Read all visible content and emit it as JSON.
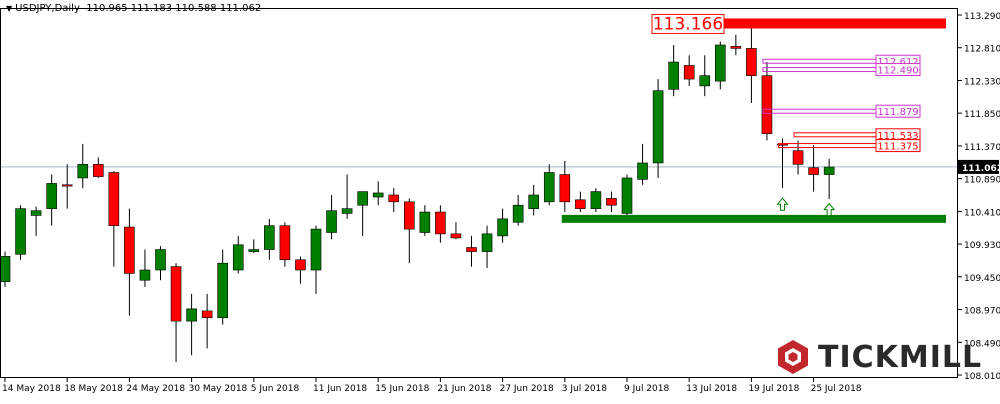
{
  "header": {
    "symbol_timeframe": "USDJPY,Daily",
    "ohlc": "110.965 111.183 110.588 111.062"
  },
  "brand": {
    "name": "TICKMILL",
    "icon": "tickmill-hex-logo-icon",
    "color": "#c0282d"
  },
  "colors": {
    "bull": "#008000",
    "bear": "#ff0000",
    "resistance": "#ff0000",
    "support": "#008000",
    "level_label": "#cc33cc",
    "axis": "#000000"
  },
  "chart_data": {
    "type": "candlestick",
    "symbol": "USDJPY",
    "timeframe": "Daily",
    "ylim": [
      108.01,
      113.29
    ],
    "price_ticks": [
      "113.290",
      "112.810",
      "112.330",
      "111.850",
      "111.370",
      "110.890",
      "110.410",
      "109.930",
      "109.450",
      "108.970",
      "108.490",
      "108.010"
    ],
    "date_ticks": [
      {
        "label": "14 May 2018",
        "index": 0
      },
      {
        "label": "18 May 2018",
        "index": 4
      },
      {
        "label": "24 May 2018",
        "index": 8
      },
      {
        "label": "30 May 2018",
        "index": 12
      },
      {
        "label": "5 Jun 2018",
        "index": 16
      },
      {
        "label": "11 Jun 2018",
        "index": 20
      },
      {
        "label": "15 Jun 2018",
        "index": 24
      },
      {
        "label": "21 Jun 2018",
        "index": 28
      },
      {
        "label": "27 Jun 2018",
        "index": 32
      },
      {
        "label": "3 Jul 2018",
        "index": 36
      },
      {
        "label": "9 Jul 2018",
        "index": 40
      },
      {
        "label": "13 Jul 2018",
        "index": 44
      },
      {
        "label": "19 Jul 2018",
        "index": 48
      },
      {
        "label": "25 Jul 2018",
        "index": 52
      }
    ],
    "candles": [
      {
        "o": 109.38,
        "h": 109.82,
        "l": 109.3,
        "c": 109.75
      },
      {
        "o": 109.78,
        "h": 110.5,
        "l": 109.7,
        "c": 110.45
      },
      {
        "o": 110.35,
        "h": 110.48,
        "l": 110.05,
        "c": 110.42
      },
      {
        "o": 110.45,
        "h": 110.95,
        "l": 110.2,
        "c": 110.82
      },
      {
        "o": 110.8,
        "h": 111.1,
        "l": 110.45,
        "c": 110.78
      },
      {
        "o": 110.9,
        "h": 111.4,
        "l": 110.75,
        "c": 111.1
      },
      {
        "o": 111.1,
        "h": 111.2,
        "l": 110.9,
        "c": 110.92
      },
      {
        "o": 110.98,
        "h": 111.0,
        "l": 109.6,
        "c": 110.2
      },
      {
        "o": 110.18,
        "h": 110.45,
        "l": 108.88,
        "c": 109.5
      },
      {
        "o": 109.4,
        "h": 109.85,
        "l": 109.3,
        "c": 109.55
      },
      {
        "o": 109.55,
        "h": 109.9,
        "l": 109.4,
        "c": 109.85
      },
      {
        "o": 109.6,
        "h": 109.65,
        "l": 108.2,
        "c": 108.8
      },
      {
        "o": 108.8,
        "h": 109.2,
        "l": 108.3,
        "c": 108.98
      },
      {
        "o": 108.95,
        "h": 109.2,
        "l": 108.4,
        "c": 108.85
      },
      {
        "o": 108.85,
        "h": 109.85,
        "l": 108.75,
        "c": 109.65
      },
      {
        "o": 109.55,
        "h": 110.05,
        "l": 109.5,
        "c": 109.92
      },
      {
        "o": 109.82,
        "h": 110.0,
        "l": 109.8,
        "c": 109.85
      },
      {
        "o": 109.85,
        "h": 110.3,
        "l": 109.7,
        "c": 110.2
      },
      {
        "o": 110.2,
        "h": 110.25,
        "l": 109.6,
        "c": 109.7
      },
      {
        "o": 109.7,
        "h": 109.75,
        "l": 109.35,
        "c": 109.55
      },
      {
        "o": 109.55,
        "h": 110.2,
        "l": 109.2,
        "c": 110.15
      },
      {
        "o": 110.1,
        "h": 110.65,
        "l": 110.0,
        "c": 110.42
      },
      {
        "o": 110.38,
        "h": 110.95,
        "l": 110.3,
        "c": 110.45
      },
      {
        "o": 110.5,
        "h": 110.7,
        "l": 110.05,
        "c": 110.7
      },
      {
        "o": 110.62,
        "h": 110.85,
        "l": 110.5,
        "c": 110.68
      },
      {
        "o": 110.65,
        "h": 110.75,
        "l": 110.4,
        "c": 110.55
      },
      {
        "o": 110.55,
        "h": 110.6,
        "l": 109.65,
        "c": 110.15
      },
      {
        "o": 110.1,
        "h": 110.5,
        "l": 110.05,
        "c": 110.4
      },
      {
        "o": 110.4,
        "h": 110.5,
        "l": 109.95,
        "c": 110.08
      },
      {
        "o": 110.08,
        "h": 110.25,
        "l": 110.0,
        "c": 110.02
      },
      {
        "o": 109.88,
        "h": 110.05,
        "l": 109.6,
        "c": 109.82
      },
      {
        "o": 109.82,
        "h": 110.2,
        "l": 109.58,
        "c": 110.08
      },
      {
        "o": 110.05,
        "h": 110.45,
        "l": 109.95,
        "c": 110.3
      },
      {
        "o": 110.25,
        "h": 110.65,
        "l": 110.2,
        "c": 110.5
      },
      {
        "o": 110.45,
        "h": 110.8,
        "l": 110.35,
        "c": 110.65
      },
      {
        "o": 110.55,
        "h": 111.1,
        "l": 110.5,
        "c": 110.98
      },
      {
        "o": 110.95,
        "h": 111.15,
        "l": 110.4,
        "c": 110.55
      },
      {
        "o": 110.58,
        "h": 110.7,
        "l": 110.4,
        "c": 110.45
      },
      {
        "o": 110.45,
        "h": 110.75,
        "l": 110.4,
        "c": 110.7
      },
      {
        "o": 110.6,
        "h": 110.7,
        "l": 110.4,
        "c": 110.5
      },
      {
        "o": 110.38,
        "h": 110.95,
        "l": 110.35,
        "c": 110.9
      },
      {
        "o": 110.88,
        "h": 111.4,
        "l": 110.8,
        "c": 111.12
      },
      {
        "o": 111.12,
        "h": 112.35,
        "l": 110.9,
        "c": 112.18
      },
      {
        "o": 112.2,
        "h": 112.85,
        "l": 112.1,
        "c": 112.6
      },
      {
        "o": 112.55,
        "h": 112.7,
        "l": 112.25,
        "c": 112.35
      },
      {
        "o": 112.25,
        "h": 112.7,
        "l": 112.1,
        "c": 112.4
      },
      {
        "o": 112.32,
        "h": 112.9,
        "l": 112.2,
        "c": 112.85
      },
      {
        "o": 112.83,
        "h": 113.0,
        "l": 112.7,
        "c": 112.8
      },
      {
        "o": 112.8,
        "h": 113.15,
        "l": 112.0,
        "c": 112.4
      },
      {
        "o": 112.4,
        "h": 112.6,
        "l": 111.45,
        "c": 111.55
      },
      {
        "o": 111.4,
        "h": 111.48,
        "l": 110.75,
        "c": 111.38
      },
      {
        "o": 111.3,
        "h": 111.45,
        "l": 110.95,
        "c": 111.1
      },
      {
        "o": 111.05,
        "h": 111.38,
        "l": 110.7,
        "c": 110.95
      },
      {
        "o": 110.95,
        "h": 111.18,
        "l": 110.59,
        "c": 111.06
      }
    ],
    "current_price": {
      "value": 111.062,
      "label": "111.062"
    },
    "resistance": {
      "value": 113.166,
      "label": "113.166"
    },
    "support": {
      "value": 110.3
    },
    "levels": [
      {
        "value": 112.612,
        "label": "112.612",
        "color": "#cc33cc",
        "start_index": 49
      },
      {
        "value": 112.49,
        "label": "112.490",
        "color": "#cc33cc",
        "start_index": 49
      },
      {
        "value": 111.879,
        "label": "111.879",
        "color": "#cc33cc",
        "start_index": 49
      },
      {
        "value": 111.533,
        "label": "111.533",
        "color": "#ff0000",
        "start_index": 51
      },
      {
        "value": 111.375,
        "label": "111.375",
        "color": "#ff0000",
        "start_index": 50
      }
    ],
    "arrows": [
      {
        "index": 50,
        "value": 110.5,
        "direction": "up"
      },
      {
        "index": 53,
        "value": 110.42,
        "direction": "up"
      }
    ],
    "grid": false
  }
}
